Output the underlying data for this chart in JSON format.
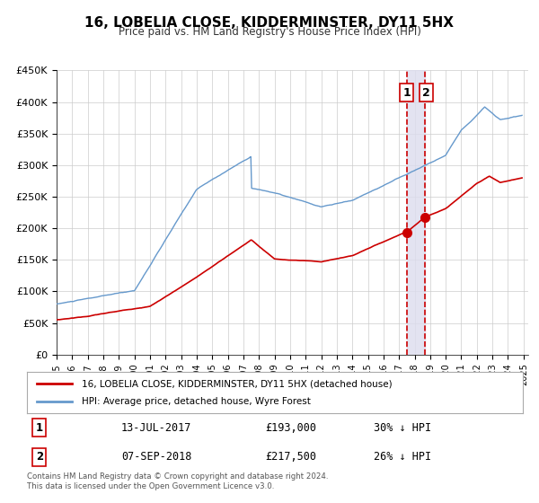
{
  "title": "16, LOBELIA CLOSE, KIDDERMINSTER, DY11 5HX",
  "subtitle": "Price paid vs. HM Land Registry's House Price Index (HPI)",
  "legend_line1": "16, LOBELIA CLOSE, KIDDERMINSTER, DY11 5HX (detached house)",
  "legend_line2": "HPI: Average price, detached house, Wyre Forest",
  "transaction1_date": "13-JUL-2017",
  "transaction1_price": "£193,000",
  "transaction1_hpi": "30% ↓ HPI",
  "transaction2_date": "07-SEP-2018",
  "transaction2_price": "£217,500",
  "transaction2_hpi": "26% ↓ HPI",
  "footer": "Contains HM Land Registry data © Crown copyright and database right 2024.\nThis data is licensed under the Open Government Licence v3.0.",
  "line_color_red": "#cc0000",
  "line_color_blue": "#6699cc",
  "marker_color": "#cc0000",
  "vline_color": "#cc0000",
  "shade_color": "#ddddee",
  "grid_color": "#cccccc",
  "background_color": "#ffffff",
  "ylim": [
    0,
    450000
  ],
  "xlim_start": 1995.0,
  "xlim_end": 2025.3,
  "transaction1_x": 2017.53,
  "transaction2_x": 2018.68,
  "transaction1_y": 193000,
  "transaction2_y": 217500
}
